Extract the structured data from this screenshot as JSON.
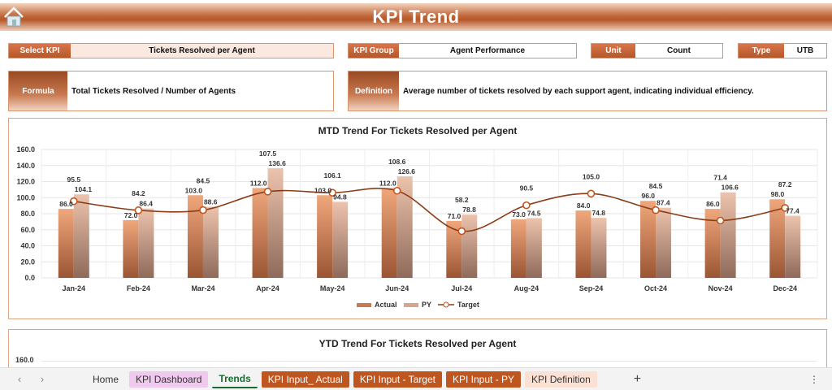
{
  "header": {
    "title": "KPI Trend",
    "home_icon": "home-icon"
  },
  "filters": {
    "select_kpi_label": "Select KPI",
    "select_kpi_value": "Tickets Resolved per Agent",
    "kpi_group_label": "KPI Group",
    "kpi_group_value": "Agent Performance",
    "unit_label": "Unit",
    "unit_value": "Count",
    "type_label": "Type",
    "type_value": "UTB"
  },
  "info": {
    "formula_label": "Formula",
    "formula_value": "Total Tickets Resolved / Number of Agents",
    "definition_label": "Definition",
    "definition_value": "Average number of tickets resolved by each support agent, indicating individual efficiency."
  },
  "colors": {
    "actual": "#d9875a",
    "py": "#dcae96",
    "target": "#8a3d17",
    "accent": "#b5582a"
  },
  "chart_data": [
    {
      "type": "bar",
      "title": "MTD Trend For Tickets Resolved per Agent",
      "categories": [
        "Jan-24",
        "Feb-24",
        "Mar-24",
        "Apr-24",
        "May-24",
        "Jun-24",
        "Jul-24",
        "Aug-24",
        "Sep-24",
        "Oct-24",
        "Nov-24",
        "Dec-24"
      ],
      "series": [
        {
          "name": "Actual",
          "type": "bar",
          "values": [
            86.0,
            72.0,
            103.0,
            112.0,
            103.0,
            112.0,
            71.0,
            73.0,
            84.0,
            96.0,
            86.0,
            98.0
          ]
        },
        {
          "name": "PY",
          "type": "bar",
          "values": [
            104.1,
            86.4,
            88.6,
            136.6,
            94.8,
            126.6,
            78.8,
            74.5,
            74.8,
            87.4,
            106.6,
            77.4
          ]
        },
        {
          "name": "Target",
          "type": "line",
          "values": [
            95.5,
            84.2,
            84.5,
            107.5,
            106.1,
            108.6,
            58.2,
            90.5,
            105.0,
            84.5,
            71.4,
            87.2
          ]
        }
      ],
      "yticks": [
        "0.0",
        "20.0",
        "40.0",
        "60.0",
        "80.0",
        "100.0",
        "120.0",
        "140.0",
        "160.0"
      ],
      "ylim": [
        0,
        160
      ],
      "grid": true,
      "legend": "bottom"
    },
    {
      "type": "bar",
      "title": "YTD Trend For Tickets Resolved per Agent",
      "yticks": [
        "160.0"
      ]
    }
  ],
  "sheet_tabs": [
    {
      "label": "Home",
      "bg": "transparent",
      "color": "#333"
    },
    {
      "label": "KPI Dashboard",
      "bg": "#f1c9ee",
      "color": "#333"
    },
    {
      "label": "Trends",
      "bg": "transparent",
      "color": "#1a6b2f"
    },
    {
      "label": "KPI Input_ Actual",
      "bg": "#c0561f",
      "color": "#fff"
    },
    {
      "label": "KPI Input - Target",
      "bg": "#c0561f",
      "color": "#fff"
    },
    {
      "label": "KPI Input - PY",
      "bg": "#c0561f",
      "color": "#fff"
    },
    {
      "label": "KPI Definition",
      "bg": "#fbe0d4",
      "color": "#333"
    }
  ],
  "add_sheet": "+"
}
